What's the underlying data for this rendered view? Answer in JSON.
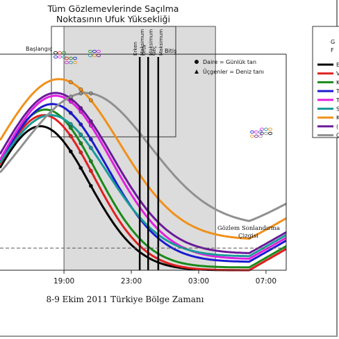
{
  "chart_data": {
    "type": "line",
    "title_line1": "Tüm Gözlemevlerinde Saçılma",
    "title_line2": "Noktasının Ufuk Yüksekliği",
    "xlabel": "8-9 Ekim 2011 Türkiye Bölge Zamanı",
    "x_ticks": [
      "19:00",
      "23:00",
      "03:00",
      "07:00"
    ],
    "x_tick_hours": [
      19,
      23,
      27,
      31
    ],
    "xlim": [
      15.2,
      32.2
    ],
    "ylim": [
      -8,
      70
    ],
    "start_label": "Başlangıç",
    "end_label": "Bitiş",
    "observation_window": [
      19.0,
      28.0
    ],
    "end_line_label_1": "Gözlem Sonlandırma",
    "end_line_label_2": "Çizgisi",
    "end_line_value": 0,
    "maxima": [
      {
        "label": "Erken",
        "sub": "Maksimum",
        "x": 23.5
      },
      {
        "label": "Orta",
        "sub": "Maksimum",
        "x": 24.0
      },
      {
        "label": "Geç",
        "sub": "Maksimum",
        "x": 24.6
      }
    ],
    "marker_note_1": "Daire = Günlük tan",
    "marker_note_2": "Üçgenler = Deniz tanı",
    "legend_header_1": "G",
    "legend_header_2": "F",
    "series": [
      {
        "color": "#000000",
        "label_fragment": "E",
        "peak_x": 17.6,
        "peak_y": 44,
        "width": 4.3,
        "min_y": -8
      },
      {
        "color": "#e02020",
        "label_fragment": "V",
        "peak_x": 17.8,
        "peak_y": 48,
        "width": 4.4,
        "min_y": -8
      },
      {
        "color": "#1a8a1a",
        "label_fragment": "K",
        "peak_x": 17.9,
        "peak_y": 50,
        "width": 4.5,
        "min_y": -7
      },
      {
        "color": "#1a1ad0",
        "label_fragment": "T",
        "peak_x": 18.3,
        "peak_y": 52,
        "width": 4.8,
        "min_y": -5
      },
      {
        "color": "#e020e0",
        "label_fragment": "T",
        "peak_x": 18.5,
        "peak_y": 55,
        "width": 4.9,
        "min_y": -4
      },
      {
        "color": "#1a9a9a",
        "label_fragment": "S",
        "peak_x": 18.2,
        "peak_y": 48,
        "width": 4.9,
        "min_y": -3
      },
      {
        "color": "#f0901a",
        "label_fragment": "K",
        "peak_x": 18.7,
        "peak_y": 61,
        "width": 5.3,
        "min_y": 3
      },
      {
        "color": "#6a1a9a",
        "label_fragment": "(",
        "peak_x": 18.5,
        "peak_y": 56,
        "width": 5.0,
        "min_y": -2
      },
      {
        "color": "#909090",
        "label_fragment": "C",
        "peak_x": 20.3,
        "peak_y": 56,
        "width": 5.6,
        "min_y": 8
      }
    ]
  }
}
